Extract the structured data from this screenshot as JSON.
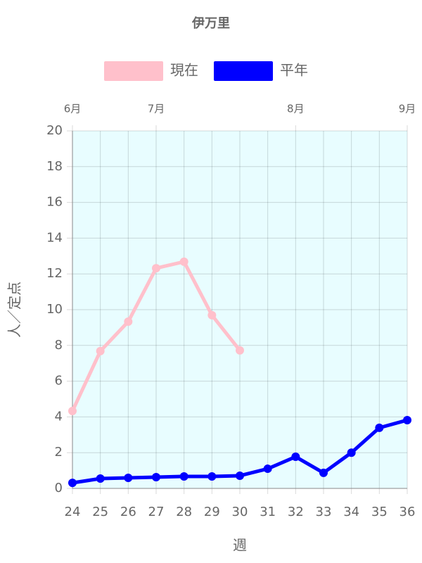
{
  "chart_data": {
    "type": "line",
    "title": "伊万里",
    "x": [
      24,
      25,
      26,
      27,
      28,
      29,
      30,
      31,
      32,
      33,
      34,
      35,
      36
    ],
    "series": [
      {
        "name": "現在",
        "color": "#ffc0cb",
        "values": [
          4.33,
          7.68,
          9.33,
          12.32,
          12.68,
          9.69,
          7.72,
          null,
          null,
          null,
          null,
          null,
          null
        ]
      },
      {
        "name": "平年",
        "color": "#0000ff",
        "values": [
          0.31,
          0.55,
          0.59,
          0.63,
          0.67,
          0.67,
          0.71,
          1.1,
          1.77,
          0.87,
          2.0,
          3.39,
          3.82
        ]
      }
    ],
    "xlim": [
      24,
      36
    ],
    "xticks": [
      24,
      25,
      26,
      27,
      28,
      29,
      30,
      31,
      32,
      33,
      34,
      35,
      36
    ],
    "ylim": [
      0,
      20
    ],
    "yticks": [
      0,
      2,
      4,
      6,
      8,
      10,
      12,
      14,
      16,
      18,
      20
    ],
    "top_ticks": [
      {
        "value": 24,
        "label": "6月"
      },
      {
        "value": 27,
        "label": "7月"
      },
      {
        "value": 32,
        "label": "8月"
      },
      {
        "value": 36,
        "label": "9月"
      }
    ],
    "xlabel": "週",
    "ylabel": "人／定点",
    "grid": true,
    "plot_background": "#e8fdff",
    "legend": "top"
  }
}
